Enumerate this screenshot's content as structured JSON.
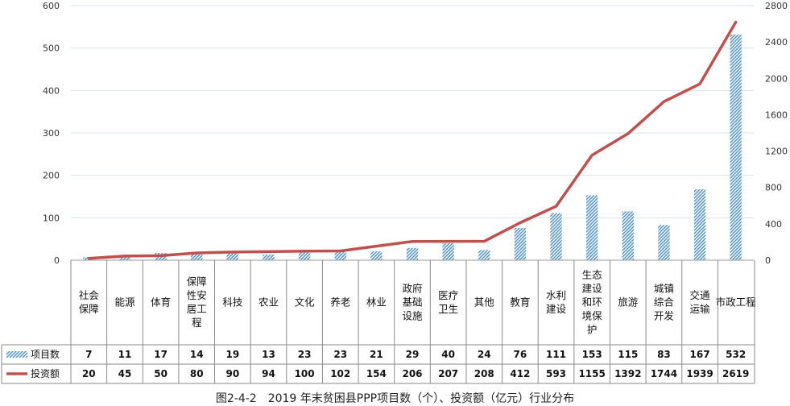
{
  "caption": "图2-4-2　2019 年末贫困县PPP项目数（个）、投资额（亿元）行业分布",
  "chart_data": {
    "type": "bar",
    "categories": [
      "社会保障",
      "能源",
      "体育",
      "保障性安居工程",
      "科技",
      "农业",
      "文化",
      "养老",
      "林业",
      "政府基础设施",
      "医疗卫生",
      "其他",
      "教育",
      "水利建设",
      "生态建设和环境保护",
      "旅游",
      "城镇综合开发",
      "交通运输",
      "市政工程"
    ],
    "category_labels": [
      [
        "社会",
        "保障"
      ],
      [
        "能源"
      ],
      [
        "体育"
      ],
      [
        "保障",
        "性安",
        "居工",
        "程"
      ],
      [
        "科技"
      ],
      [
        "农业"
      ],
      [
        "文化"
      ],
      [
        "养老"
      ],
      [
        "林业"
      ],
      [
        "政府",
        "基础",
        "设施"
      ],
      [
        "医疗",
        "卫生"
      ],
      [
        "其他"
      ],
      [
        "教育"
      ],
      [
        "水利",
        "建设"
      ],
      [
        "生态",
        "建设",
        "和环",
        "境保",
        "护"
      ],
      [
        "旅游"
      ],
      [
        "城镇",
        "综合",
        "开发"
      ],
      [
        "交通",
        "运输"
      ],
      [
        "市政工程"
      ]
    ],
    "series": [
      {
        "name": "项目数",
        "type": "bar",
        "axis": "left",
        "values": [
          7,
          11,
          17,
          14,
          19,
          13,
          23,
          23,
          21,
          29,
          40,
          24,
          76,
          111,
          153,
          115,
          83,
          167,
          532
        ]
      },
      {
        "name": "投资额",
        "type": "line",
        "axis": "right",
        "values": [
          20,
          45,
          50,
          80,
          90,
          94,
          100,
          102,
          154,
          206,
          207,
          208,
          412,
          593,
          1155,
          1392,
          1744,
          1939,
          2619
        ]
      }
    ],
    "y_left": {
      "min": 0,
      "max": 600,
      "ticks": [
        0,
        100,
        200,
        300,
        400,
        500,
        600
      ]
    },
    "y_right": {
      "min": 0,
      "max": 2800,
      "ticks": [
        0,
        400,
        800,
        1200,
        1600,
        2000,
        2400,
        2800
      ]
    },
    "grid": true,
    "legend": "data-table",
    "colors": {
      "bar": "#4a90c8",
      "line": "#c0504d",
      "grid": "#d7e3f1",
      "axis": "#999999"
    }
  }
}
